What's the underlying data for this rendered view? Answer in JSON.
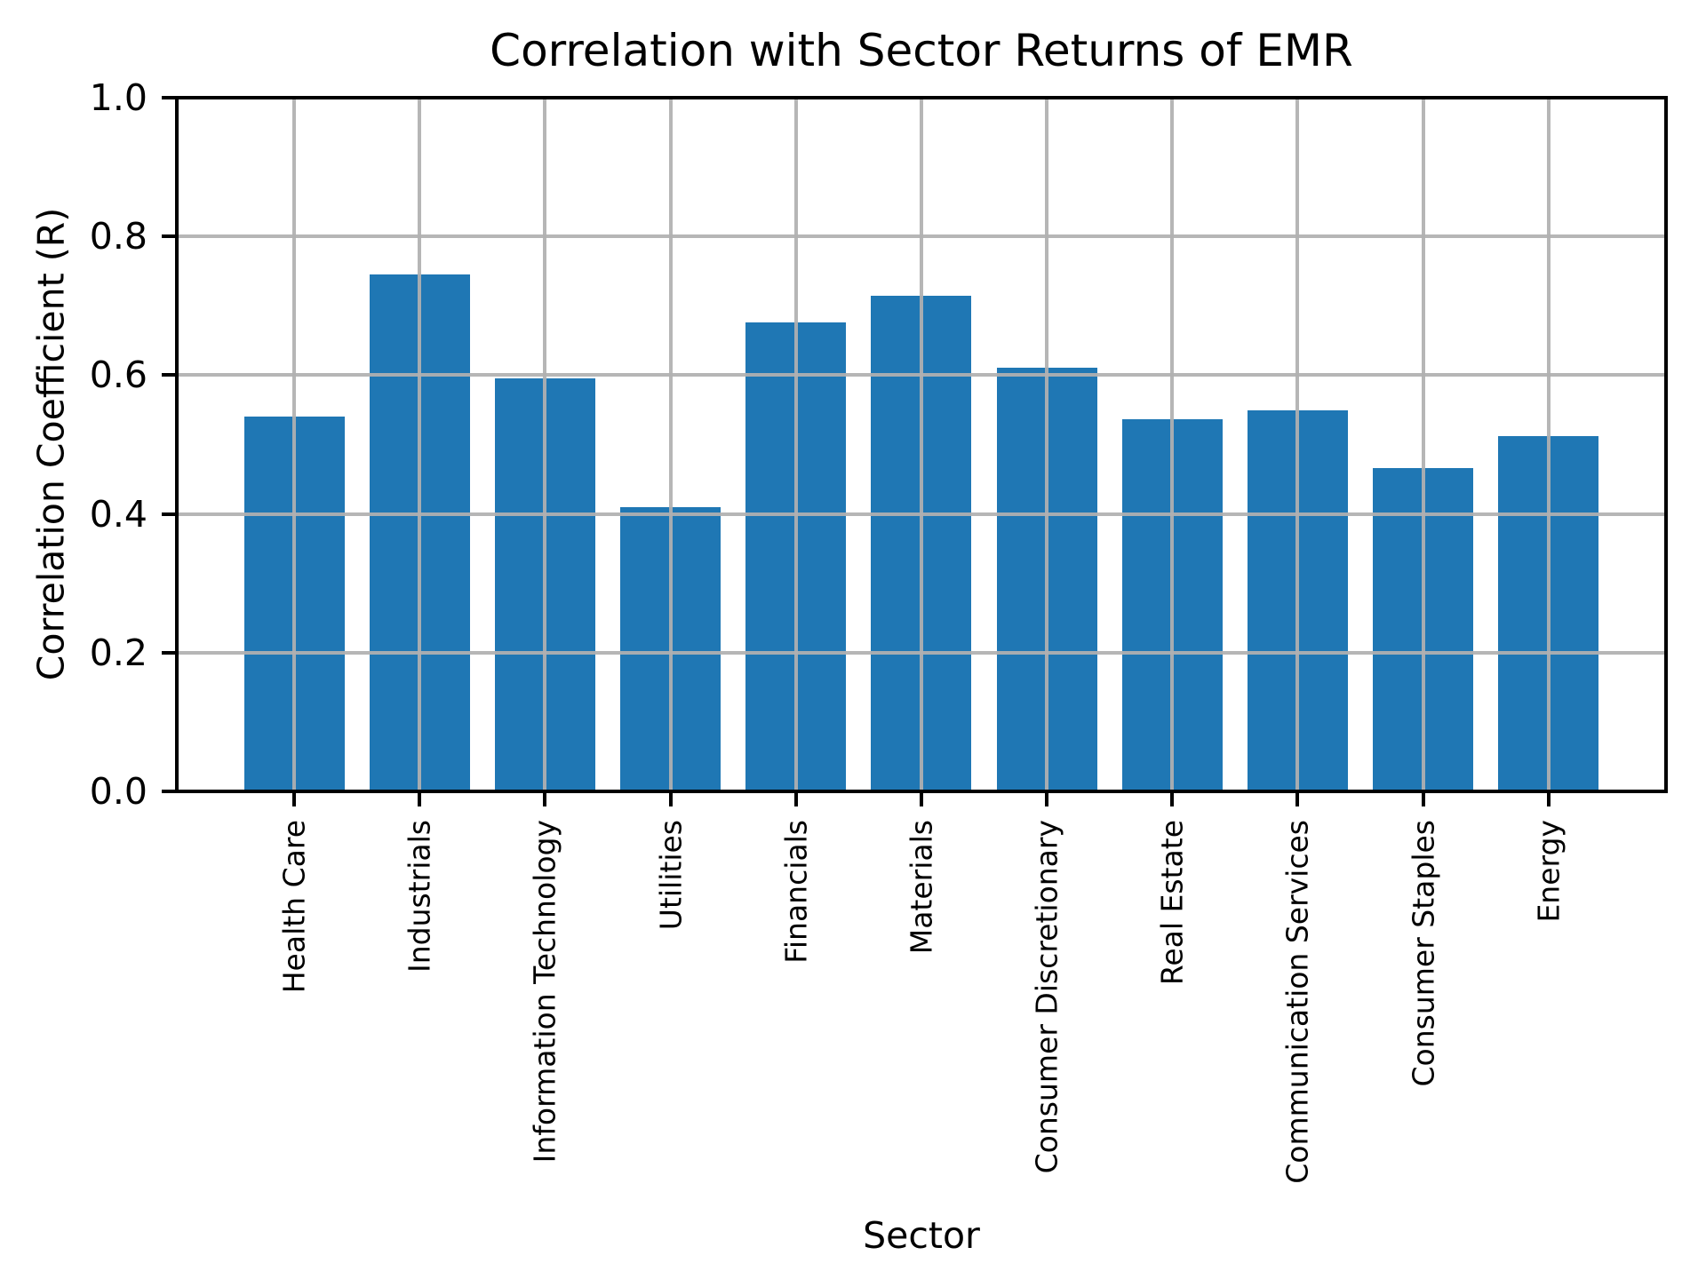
{
  "figure": {
    "title": "Correlation with Sector Returns of EMR",
    "xlabel": "Sector",
    "ylabel": "Correlation Coefficient (R)"
  },
  "chart_data": {
    "type": "bar",
    "title": "Correlation with Sector Returns of EMR",
    "xlabel": "Sector",
    "ylabel": "Correlation Coefficient (R)",
    "categories": [
      "Health Care",
      "Industrials",
      "Information Technology",
      "Utilities",
      "Financials",
      "Materials",
      "Consumer Discretionary",
      "Real Estate",
      "Communication Services",
      "Consumer Staples",
      "Energy"
    ],
    "values": [
      0.54,
      0.745,
      0.596,
      0.41,
      0.676,
      0.714,
      0.611,
      0.537,
      0.549,
      0.466,
      0.512
    ],
    "ylim": [
      0.0,
      1.0
    ],
    "ytick_labels": [
      "0.0",
      "0.2",
      "0.4",
      "0.6",
      "0.8",
      "1.0"
    ],
    "ytick_values": [
      0.0,
      0.2,
      0.4,
      0.6,
      0.8,
      1.0
    ],
    "grid": true,
    "grid_on_top": true,
    "legend": "none",
    "bar_color": "#1f77b4",
    "grid_color": "#b0b0b0",
    "x_tick_rotation_deg": 90
  }
}
